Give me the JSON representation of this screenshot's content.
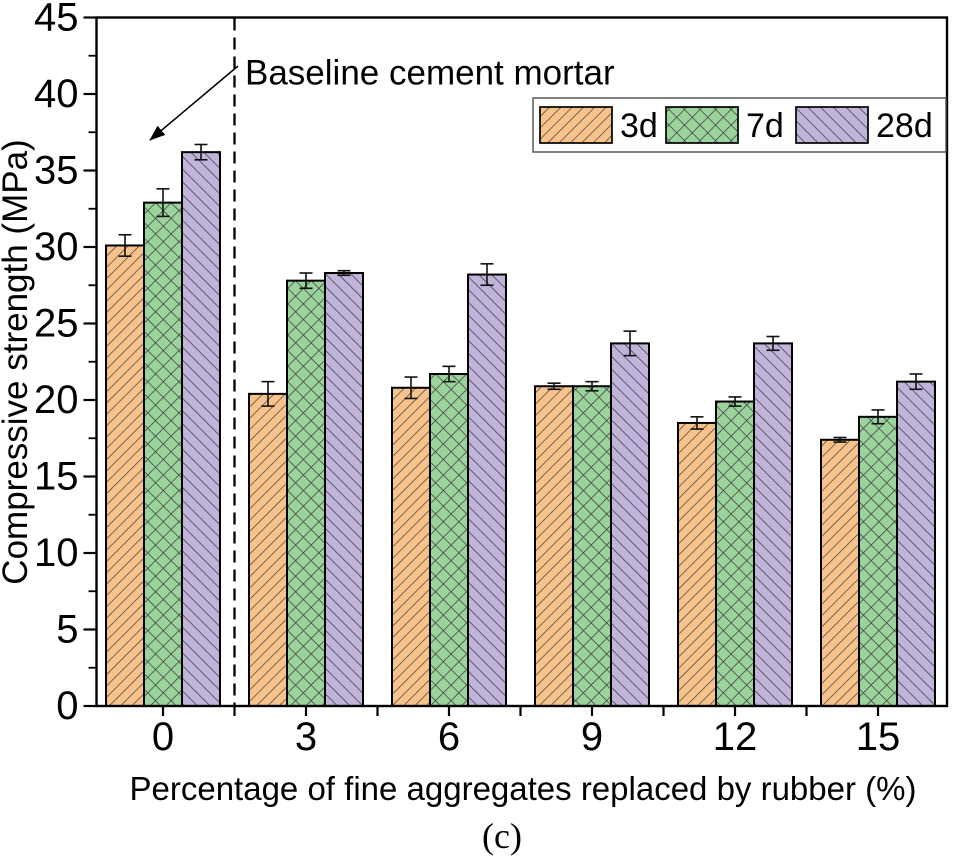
{
  "figure": {
    "caption": "(c)",
    "annotation": "Baseline cement mortar"
  },
  "chart_data": {
    "type": "bar",
    "title": "",
    "xlabel": "Percentage of fine aggregates replaced by rubber (%)",
    "ylabel": "Compressive strength (MPa)",
    "categories": [
      "0",
      "3",
      "6",
      "9",
      "12",
      "15"
    ],
    "series": [
      {
        "name": "3d",
        "color": "#F8C38B",
        "hatch": "diagonal-forward",
        "values": [
          30.1,
          20.4,
          20.8,
          20.9,
          18.5,
          17.4
        ],
        "errors": [
          0.7,
          0.8,
          0.7,
          0.2,
          0.4,
          0.15
        ]
      },
      {
        "name": "7d",
        "color": "#9AD49C",
        "hatch": "cross-diagonal",
        "values": [
          32.9,
          27.8,
          21.7,
          20.9,
          19.9,
          18.9
        ],
        "errors": [
          0.9,
          0.5,
          0.5,
          0.3,
          0.3,
          0.45
        ]
      },
      {
        "name": "28d",
        "color": "#C1B4DB",
        "hatch": "diagonal-back",
        "values": [
          36.2,
          28.3,
          28.2,
          23.7,
          23.7,
          21.2
        ],
        "errors": [
          0.5,
          0.15,
          0.7,
          0.8,
          0.45,
          0.5
        ]
      }
    ],
    "ylim": [
      0,
      45
    ],
    "y_ticks": [
      0,
      5,
      10,
      15,
      20,
      25,
      30,
      35,
      40,
      45
    ],
    "y_major_step": 5,
    "y_minor_step": 2.5,
    "grid": false,
    "legend_position": "top-right",
    "divider_after_category_index": 0,
    "hatch_line_color": "#3f3f3f",
    "bar_edge_color": "#000000",
    "axis_color": "#000000",
    "error_bar_color": "#111111"
  }
}
